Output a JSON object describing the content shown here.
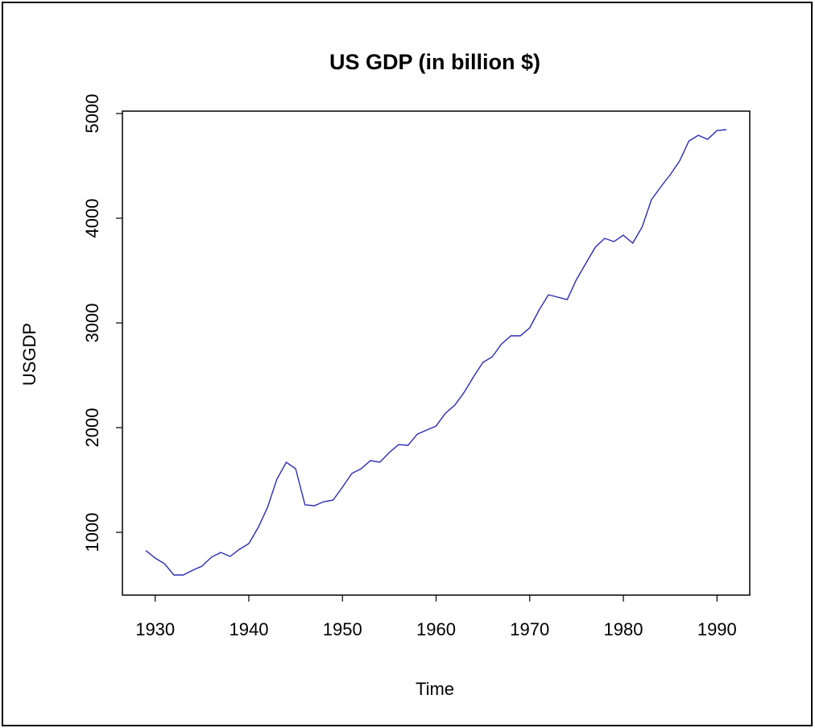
{
  "chart_data": {
    "type": "line",
    "title": "US GDP (in billion $)",
    "xlabel": "Time",
    "ylabel": "USGDP",
    "xlim": [
      1926.5,
      1993.5
    ],
    "ylim": [
      400,
      5023
    ],
    "x_ticks": [
      1930,
      1940,
      1950,
      1960,
      1970,
      1980,
      1990
    ],
    "y_ticks": [
      1000,
      2000,
      3000,
      4000,
      5000
    ],
    "grid": false,
    "line_color": "#2b2bb0",
    "series": [
      {
        "x": [
          1929,
          1930,
          1931,
          1932,
          1933,
          1934,
          1935,
          1936,
          1937,
          1938,
          1939,
          1940,
          1941,
          1942,
          1943,
          1944,
          1945,
          1946,
          1947,
          1948,
          1949,
          1950,
          1951,
          1952,
          1953,
          1954,
          1955,
          1956,
          1957,
          1958,
          1959,
          1960,
          1961,
          1962,
          1963,
          1964,
          1965,
          1966,
          1967,
          1968,
          1969,
          1970,
          1971,
          1972,
          1973,
          1974,
          1975,
          1976,
          1977,
          1978,
          1979,
          1980,
          1981,
          1982,
          1983,
          1984,
          1985,
          1986,
          1987,
          1988,
          1989,
          1990,
          1991
        ],
        "values": [
          825,
          754,
          700,
          592,
          592,
          638,
          677,
          762,
          808,
          769,
          838,
          892,
          1046,
          1238,
          1508,
          1669,
          1608,
          1262,
          1254,
          1292,
          1308,
          1431,
          1562,
          1608,
          1685,
          1669,
          1762,
          1838,
          1831,
          1938,
          1977,
          2015,
          2138,
          2215,
          2338,
          2485,
          2623,
          2677,
          2800,
          2877,
          2877,
          2954,
          3123,
          3269,
          3246,
          3223,
          3415,
          3569,
          3723,
          3808,
          3777,
          3838,
          3762,
          3915,
          4177,
          4300,
          4415,
          4546,
          4738,
          4792,
          4754,
          4838,
          4846
        ]
      }
    ]
  }
}
